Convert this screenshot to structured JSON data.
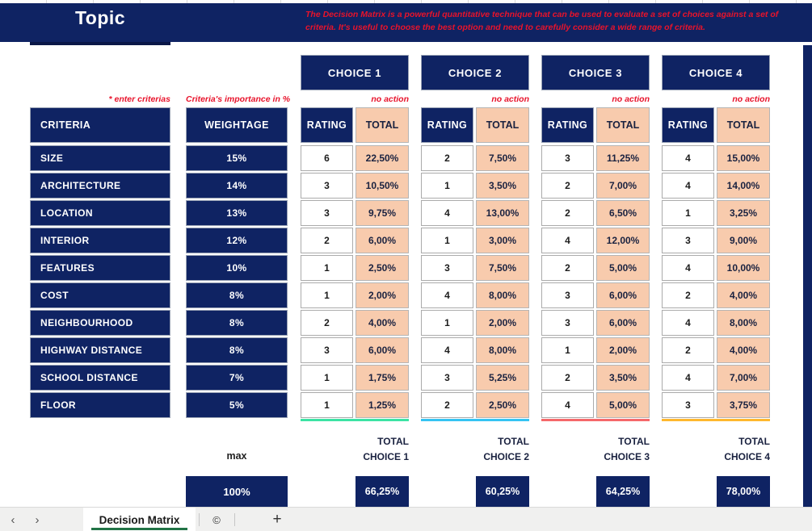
{
  "header": {
    "title": "Topic",
    "description": "The Decision Matrix is a powerful quantitative technique that can be used to evaluate a set of choices against a set of criteria. It's useful to choose the best option and need to carefully consider a wide range of criteria."
  },
  "notes": {
    "enter_criterias": "* enter criterias",
    "importance_note": "Criteria's importance in %",
    "no_action": "no action"
  },
  "columns": {
    "criteria": "CRITERIA",
    "weightage": "WEIGHTAGE",
    "rating": "RATING",
    "total": "TOTAL"
  },
  "criteria_rows": [
    {
      "name": "SIZE",
      "weightage": "15%"
    },
    {
      "name": "ARCHITECTURE",
      "weightage": "14%"
    },
    {
      "name": "LOCATION",
      "weightage": "13%"
    },
    {
      "name": "INTERIOR",
      "weightage": "12%"
    },
    {
      "name": "FEATURES",
      "weightage": "10%"
    },
    {
      "name": "COST",
      "weightage": "8%"
    },
    {
      "name": "NEIGHBOURHOOD",
      "weightage": "8%"
    },
    {
      "name": "HIGHWAY DISTANCE",
      "weightage": "8%"
    },
    {
      "name": "SCHOOL DISTANCE",
      "weightage": "7%"
    },
    {
      "name": "FLOOR",
      "weightage": "5%"
    }
  ],
  "choices": [
    {
      "label": "CHOICE 1",
      "accent_color": "#3CE3A4",
      "ratings": [
        "6",
        "3",
        "3",
        "2",
        "1",
        "1",
        "2",
        "3",
        "1",
        "1"
      ],
      "totals": [
        "22,50%",
        "10,50%",
        "9,75%",
        "6,00%",
        "2,50%",
        "2,00%",
        "4,00%",
        "6,00%",
        "1,75%",
        "1,25%"
      ],
      "summary_label": "TOTAL",
      "summary_sublabel": "CHOICE 1",
      "summary_value": "66,25%"
    },
    {
      "label": "CHOICE 2",
      "accent_color": "#35C4F3",
      "ratings": [
        "2",
        "1",
        "4",
        "1",
        "3",
        "4",
        "1",
        "4",
        "3",
        "2"
      ],
      "totals": [
        "7,50%",
        "3,50%",
        "13,00%",
        "3,00%",
        "7,50%",
        "8,00%",
        "2,00%",
        "8,00%",
        "5,25%",
        "2,50%"
      ],
      "summary_label": "TOTAL",
      "summary_sublabel": "CHOICE 2",
      "summary_value": "60,25%"
    },
    {
      "label": "CHOICE 3",
      "accent_color": "#F5696B",
      "ratings": [
        "3",
        "2",
        "2",
        "4",
        "2",
        "3",
        "3",
        "1",
        "2",
        "4"
      ],
      "totals": [
        "11,25%",
        "7,00%",
        "6,50%",
        "12,00%",
        "5,00%",
        "6,00%",
        "6,00%",
        "2,00%",
        "3,50%",
        "5,00%"
      ],
      "summary_label": "TOTAL",
      "summary_sublabel": "CHOICE 3",
      "summary_value": "64,25%"
    },
    {
      "label": "CHOICE 4",
      "accent_color": "#FFB82E",
      "ratings": [
        "4",
        "4",
        "1",
        "3",
        "4",
        "2",
        "4",
        "2",
        "4",
        "3"
      ],
      "totals": [
        "15,00%",
        "14,00%",
        "3,25%",
        "9,00%",
        "10,00%",
        "4,00%",
        "8,00%",
        "4,00%",
        "7,00%",
        "3,75%"
      ],
      "summary_label": "TOTAL",
      "summary_sublabel": "CHOICE 4",
      "summary_value": "78,00%"
    }
  ],
  "summary": {
    "max_label": "max",
    "max_value": "100%"
  },
  "sheet_bar": {
    "prev_icon": "‹",
    "next_icon": "›",
    "tabs": [
      {
        "label": "Decision Matrix"
      },
      {
        "label": "©"
      }
    ],
    "add_label": "+"
  },
  "colors": {
    "navy": "#0F2363",
    "peach": "#F8CBAD",
    "red": "#E8132B",
    "tab_green": "#217346"
  }
}
